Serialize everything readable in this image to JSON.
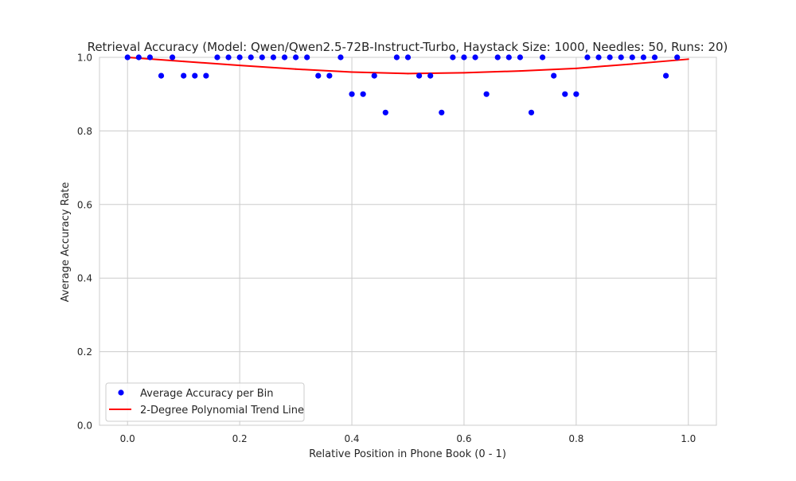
{
  "chart_data": {
    "type": "scatter",
    "title": "Retrieval Accuracy (Model: Qwen/Qwen2.5-72B-Instruct-Turbo, Haystack Size: 1000, Needles: 50, Runs: 20)",
    "xlabel": "Relative Position in Phone Book (0 - 1)",
    "ylabel": "Average Accuracy Rate",
    "xlim": [
      -0.05,
      1.05
    ],
    "ylim": [
      0.0,
      1.0
    ],
    "xticks": [
      0.0,
      0.2,
      0.4,
      0.6,
      0.8,
      1.0
    ],
    "xtick_labels": [
      "0.0",
      "0.2",
      "0.4",
      "0.6",
      "0.8",
      "1.0"
    ],
    "yticks": [
      0.0,
      0.2,
      0.4,
      0.6,
      0.8,
      1.0
    ],
    "ytick_labels": [
      "0.0",
      "0.2",
      "0.4",
      "0.6",
      "0.8",
      "1.0"
    ],
    "grid": true,
    "legend_position": "lower-left",
    "series": [
      {
        "name": "Average Accuracy per Bin",
        "kind": "scatter",
        "color": "#0000ff",
        "x": [
          0.0,
          0.02,
          0.04,
          0.06,
          0.08,
          0.1,
          0.12,
          0.14,
          0.16,
          0.18,
          0.2,
          0.22,
          0.24,
          0.26,
          0.28,
          0.3,
          0.32,
          0.34,
          0.36,
          0.38,
          0.4,
          0.42,
          0.44,
          0.46,
          0.48,
          0.5,
          0.52,
          0.54,
          0.56,
          0.58,
          0.6,
          0.62,
          0.64,
          0.66,
          0.68,
          0.7,
          0.72,
          0.74,
          0.76,
          0.78,
          0.8,
          0.82,
          0.84,
          0.86,
          0.88,
          0.9,
          0.92,
          0.94,
          0.96,
          0.98
        ],
        "y": [
          1.0,
          1.0,
          1.0,
          0.95,
          1.0,
          0.95,
          0.95,
          0.95,
          1.0,
          1.0,
          1.0,
          1.0,
          1.0,
          1.0,
          1.0,
          1.0,
          1.0,
          0.95,
          0.95,
          1.0,
          0.9,
          0.9,
          0.95,
          0.85,
          1.0,
          1.0,
          0.95,
          0.95,
          0.85,
          1.0,
          1.0,
          1.0,
          0.9,
          1.0,
          1.0,
          1.0,
          0.85,
          1.0,
          0.95,
          0.9,
          0.9,
          1.0,
          1.0,
          1.0,
          1.0,
          1.0,
          1.0,
          1.0,
          0.95,
          1.0
        ]
      },
      {
        "name": "2-Degree Polynomial Trend Line",
        "kind": "line",
        "color": "#ff0000",
        "x": [
          0.0,
          0.1,
          0.2,
          0.3,
          0.4,
          0.5,
          0.6,
          0.7,
          0.8,
          0.9,
          1.0
        ],
        "y": [
          1.0,
          0.989,
          0.978,
          0.968,
          0.96,
          0.956,
          0.958,
          0.963,
          0.97,
          0.982,
          0.995
        ]
      }
    ]
  }
}
